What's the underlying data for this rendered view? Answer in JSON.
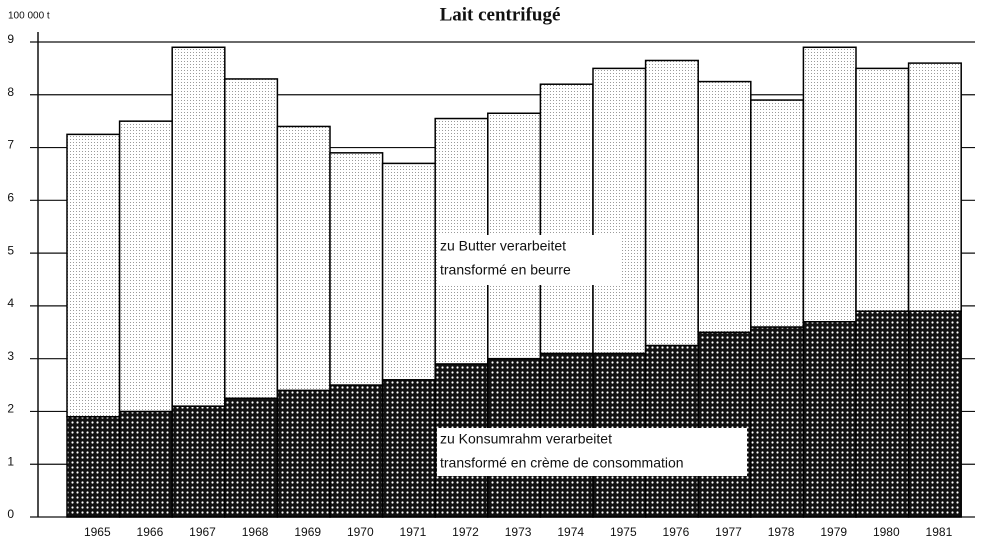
{
  "chart_data": {
    "type": "stacked_bar",
    "title": "Lait centrifugé",
    "unit_label": "100 000 t",
    "categories": [
      "1965",
      "1966",
      "1967",
      "1968",
      "1969",
      "1970",
      "1971",
      "1972",
      "1973",
      "1974",
      "1975",
      "1976",
      "1977",
      "1978",
      "1979",
      "1980",
      "1981"
    ],
    "series": [
      {
        "name": "zu Konsumrahm verarbeitet",
        "name_fr": "transformé en crème de consommation",
        "color": "#111111",
        "values": [
          1.9,
          2.0,
          2.1,
          2.25,
          2.4,
          2.5,
          2.6,
          2.9,
          3.0,
          3.1,
          3.1,
          3.25,
          3.5,
          3.6,
          3.7,
          3.9,
          3.9
        ]
      },
      {
        "name": "zu Butter verarbeitet",
        "name_fr": "transformé en beurre",
        "color": "#9a9a9a",
        "values": [
          5.35,
          5.5,
          6.8,
          6.05,
          5.0,
          4.4,
          4.1,
          4.65,
          4.65,
          5.1,
          5.4,
          5.4,
          4.75,
          4.3,
          5.2,
          4.6,
          4.7
        ]
      }
    ],
    "ylim": [
      0,
      9
    ],
    "yticks": [
      0,
      1,
      2,
      3,
      4,
      5,
      6,
      7,
      8,
      9
    ],
    "grid": true
  }
}
